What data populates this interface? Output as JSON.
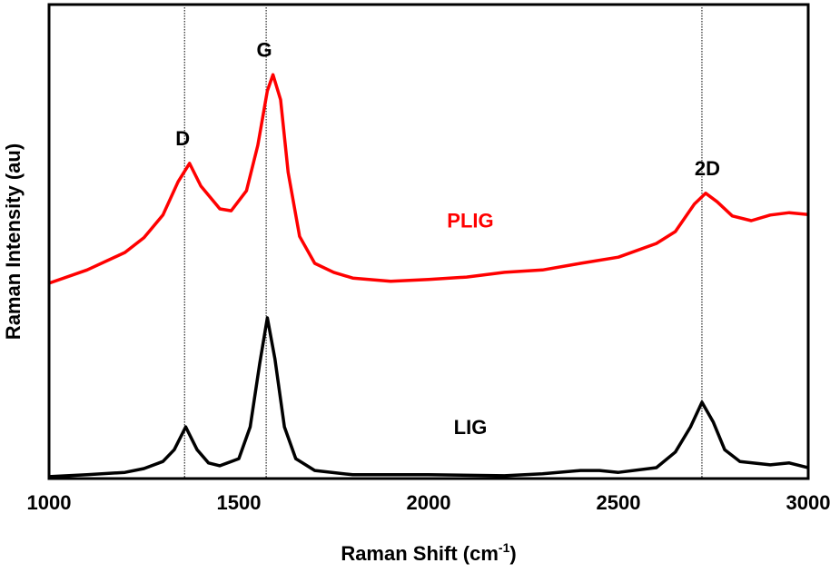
{
  "chart_data": {
    "type": "line",
    "title": "",
    "xlabel": "Raman Shift (cm",
    "xlabel_sup": "-1",
    "xlabel_tail": ")",
    "ylabel": "Raman Intensity (au)",
    "xlim": [
      1000,
      3000
    ],
    "ylim": [
      0,
      100
    ],
    "xticks": [
      1000,
      1500,
      2000,
      2500,
      3000
    ],
    "y_ticks_shown": false,
    "grid": false,
    "legend": "none",
    "reference_lines": [
      {
        "x": 1357,
        "label": "D"
      },
      {
        "x": 1572,
        "label": "G"
      },
      {
        "x": 2720,
        "label": "2D"
      }
    ],
    "series": [
      {
        "name": "PLIG",
        "color": "#ff0000",
        "x": [
          1000,
          1100,
          1200,
          1250,
          1300,
          1340,
          1370,
          1400,
          1450,
          1480,
          1520,
          1550,
          1575,
          1590,
          1610,
          1630,
          1660,
          1700,
          1750,
          1800,
          1900,
          2000,
          2100,
          2200,
          2300,
          2400,
          2500,
          2600,
          2650,
          2700,
          2730,
          2760,
          2800,
          2850,
          2900,
          2950,
          3000
        ],
        "y": [
          41.2,
          44,
          47.7,
          50.8,
          55.6,
          62.6,
          66.5,
          61.7,
          56.9,
          56.5,
          60.7,
          70.3,
          81.8,
          85.2,
          79.9,
          64.6,
          51.1,
          45.4,
          43.5,
          42.3,
          41.6,
          42,
          42.5,
          43.5,
          44,
          45.4,
          46.7,
          49.6,
          52.1,
          57.9,
          60.2,
          58.4,
          55.4,
          54.4,
          55.6,
          56.1,
          55.7
        ]
      },
      {
        "name": "LIG",
        "color": "#000000",
        "x": [
          1000,
          1100,
          1200,
          1250,
          1300,
          1330,
          1360,
          1390,
          1420,
          1450,
          1500,
          1530,
          1555,
          1575,
          1595,
          1620,
          1650,
          1700,
          1800,
          2000,
          2200,
          2300,
          2400,
          2450,
          2500,
          2600,
          2650,
          2690,
          2720,
          2750,
          2780,
          2820,
          2900,
          2950,
          3000
        ],
        "y": [
          0.4,
          0.8,
          1.3,
          2.1,
          3.6,
          6.1,
          10.9,
          6.1,
          3.3,
          2.7,
          4.2,
          10.9,
          24.3,
          33.9,
          25.3,
          10.9,
          4.2,
          1.7,
          0.8,
          0.8,
          0.6,
          1,
          1.7,
          1.7,
          1.3,
          2.3,
          5.6,
          10.9,
          16.1,
          11.9,
          6.1,
          3.6,
          2.9,
          3.3,
          2.3
        ]
      }
    ],
    "annotations": [
      {
        "text": "PLIG",
        "x": 2110,
        "y": 54.5,
        "color": "#ff0000"
      },
      {
        "text": "LIG",
        "x": 2110,
        "y": 10.9,
        "color": "#000000"
      }
    ]
  }
}
